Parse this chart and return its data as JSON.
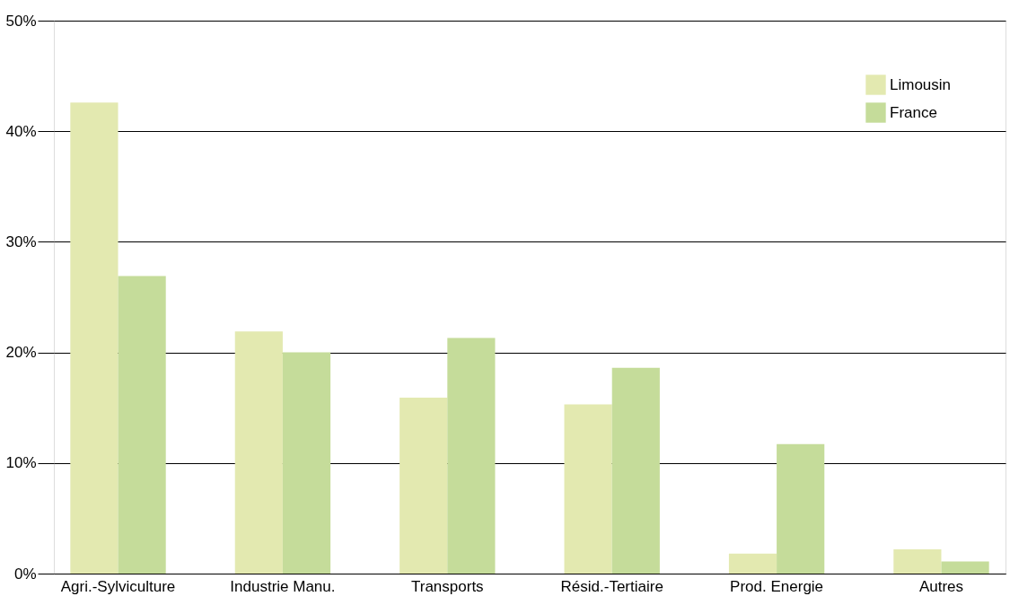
{
  "chart_data": {
    "type": "bar",
    "categories": [
      "Agri.-Sylviculture",
      "Industrie Manu.",
      "Transports",
      "Résid.-Tertiaire",
      "Prod. Energie",
      "Autres"
    ],
    "series": [
      {
        "name": "Limousin",
        "color": "#e3e9b0",
        "values": [
          42.6,
          21.9,
          15.9,
          15.3,
          1.8,
          2.2
        ]
      },
      {
        "name": "France",
        "color": "#c5dc9a",
        "values": [
          26.9,
          20.0,
          21.3,
          18.6,
          11.7,
          1.1
        ]
      }
    ],
    "ylim": [
      0,
      50
    ],
    "yticks": [
      {
        "value": 0,
        "label": "0%"
      },
      {
        "value": 10,
        "label": "10%"
      },
      {
        "value": 20,
        "label": "20%"
      },
      {
        "value": 30,
        "label": "30%"
      },
      {
        "value": 40,
        "label": "40%"
      },
      {
        "value": 50,
        "label": "50%"
      }
    ],
    "grid": "y",
    "legend": "top right"
  }
}
